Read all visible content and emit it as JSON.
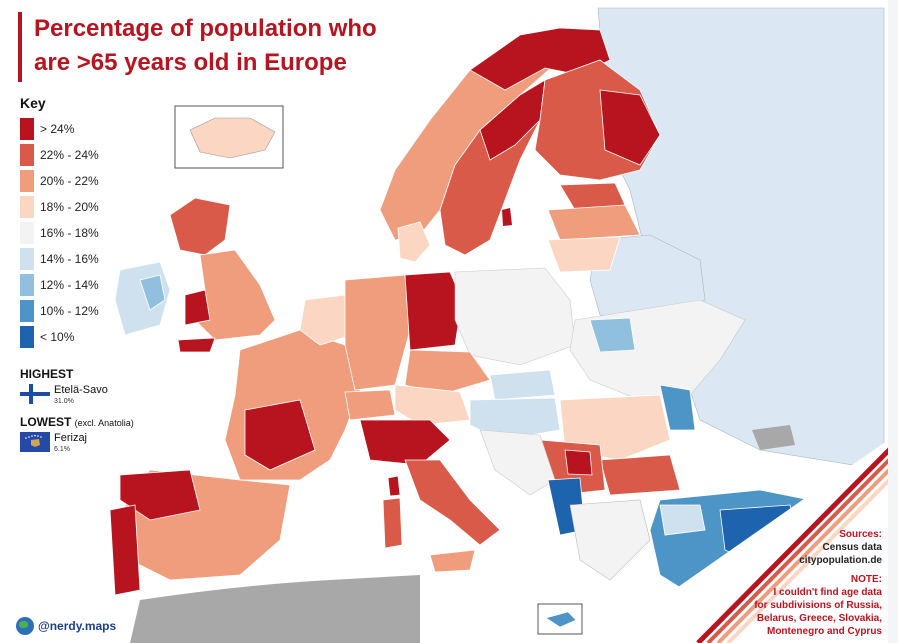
{
  "title": {
    "line1": "Percentage of population who",
    "line2": "are >65 years old in Europe"
  },
  "key": {
    "heading": "Key",
    "items": [
      {
        "label": "> 24%",
        "color": "#b8141f"
      },
      {
        "label": "22% - 24%",
        "color": "#d95a49"
      },
      {
        "label": "20% - 22%",
        "color": "#ef9d7c"
      },
      {
        "label": "18% - 20%",
        "color": "#fbd6c2"
      },
      {
        "label": "16% - 18%",
        "color": "#f3f3f3"
      },
      {
        "label": "14% - 16%",
        "color": "#cfe1ef"
      },
      {
        "label": "12% - 14%",
        "color": "#90c0de"
      },
      {
        "label": "10% - 12%",
        "color": "#4d94c7"
      },
      {
        "label": "< 10%",
        "color": "#1d63ae"
      }
    ]
  },
  "highest": {
    "heading": "HIGHEST",
    "place": "Etelä-Savo",
    "value": "31.0%",
    "flag_icon": "finland-flag-icon"
  },
  "lowest": {
    "heading": "LOWEST",
    "note": "(excl. Anatolia)",
    "place": "Ferizaj",
    "value": "6.1%",
    "flag_icon": "kosovo-flag-icon"
  },
  "credit": {
    "handle": "@nerdy.maps",
    "icon": "globe-icon"
  },
  "sources": {
    "heading": "Sources:",
    "line1": "Census data",
    "line2": "citypopulation.de",
    "note_heading": "NOTE:",
    "note_lines": [
      "I couldn't find age data",
      "for subdivisions of Russia,",
      "Belarus, Greece, Slovakia,",
      "Montenegro and Cyprus"
    ]
  },
  "colors": {
    "no_data": "#dbe8f3",
    "outside": "#a8a8a8",
    "accent": "#b8141f"
  }
}
